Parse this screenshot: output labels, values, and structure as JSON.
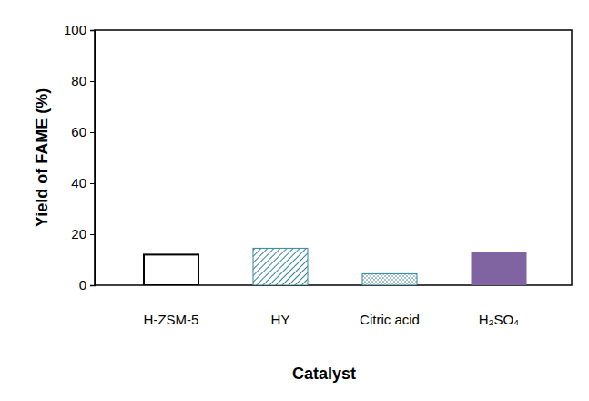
{
  "chart_data": {
    "type": "bar",
    "x_label": "Catalyst",
    "y_label": "Yield of FAME (%)",
    "categories": [
      "H-ZSM-5",
      "HY",
      "Citric acid",
      "H₂SO₄"
    ],
    "values": [
      12,
      14.5,
      4.5,
      13
    ],
    "colors": [
      "#ffffff",
      "#31859c",
      "#31859c",
      "#8064a2"
    ],
    "ylim": [
      0,
      100
    ],
    "yticks": [
      0,
      20,
      40,
      60,
      80,
      100
    ],
    "grid": false
  }
}
